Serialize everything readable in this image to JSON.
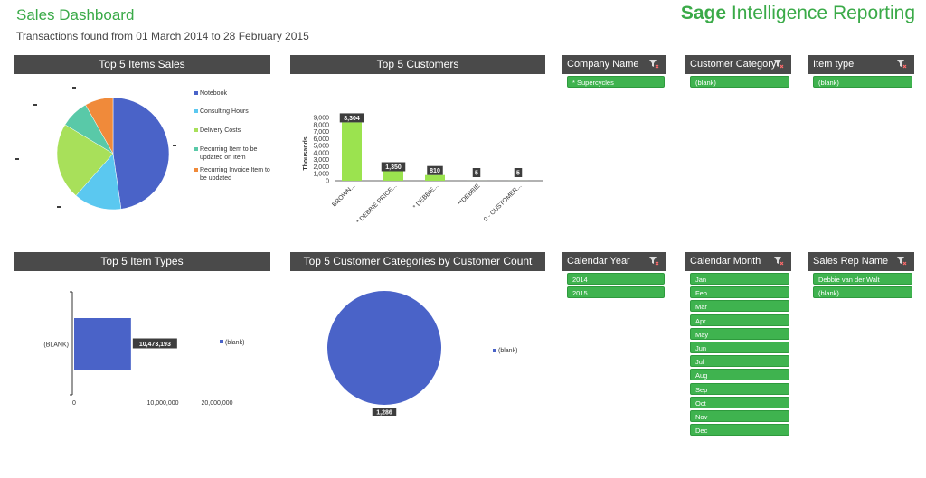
{
  "header": {
    "title": "Sales Dashboard",
    "subtitle": "Transactions found from 01 March 2014 to 28 February 2015",
    "brand_bold": "Sage",
    "brand_rest": " Intelligence Reporting"
  },
  "panels": {
    "items_sales": "Top 5 Items Sales",
    "customers": "Top 5 Customers",
    "item_types": "Top 5 Item Types",
    "customer_categories": "Top 5 Customer Categories by Customer Count"
  },
  "slicers": {
    "company_name": {
      "title": "Company Name",
      "items": [
        "* Supercycles"
      ]
    },
    "customer_category": {
      "title": "Customer Category",
      "items": [
        "(blank)"
      ]
    },
    "item_type": {
      "title": "Item type",
      "items": [
        "(blank)"
      ]
    },
    "calendar_year": {
      "title": "Calendar Year",
      "items": [
        "2014",
        "2015"
      ]
    },
    "calendar_month": {
      "title": "Calendar Month",
      "items": [
        "Jan",
        "Feb",
        "Mar",
        "Apr",
        "May",
        "Jun",
        "Jul",
        "Aug",
        "Sep",
        "Oct",
        "Nov",
        "Dec"
      ]
    },
    "sales_rep": {
      "title": "Sales Rep Name",
      "items": [
        "Debbie van der Walt",
        "(blank)"
      ]
    }
  },
  "colors": {
    "accent": "#3aaa48",
    "header": "#4a4a4a",
    "bar": "#9be34f",
    "blue": "#4a63c8"
  },
  "chart_data": [
    {
      "type": "pie",
      "title": "Top 5 Items Sales",
      "labels": [
        "Notebook",
        "Consulting Hours",
        "Delivery Costs",
        "Recurring Item to be updated on Item",
        "Recurring Invoice Item to be updated"
      ],
      "values": [
        4732000,
        1370250,
        2198000,
        810000,
        810000
      ],
      "value_labels": [
        "4,732,000",
        "1,370,250",
        "2,198,000",
        "810,000",
        "810,000"
      ],
      "colors": [
        "#4a63c8",
        "#5bc8f0",
        "#a8e05a",
        "#59c9a8",
        "#f08a3a"
      ]
    },
    {
      "type": "bar",
      "title": "Top 5 Customers",
      "categories": [
        "BROWN...",
        "* DEBBIE PRICE...",
        "* DEBBIE...",
        "**DEBBIE",
        "0 - CUSTOMER..."
      ],
      "values": [
        8304,
        1350,
        810,
        5,
        5
      ],
      "value_labels": [
        "8,304",
        "1,350",
        "810",
        "5",
        "5"
      ],
      "ylabel": "Thousands",
      "yticks": [
        "9,000",
        "8,000",
        "7,000",
        "6,000",
        "5,000",
        "4,000",
        "3,000",
        "2,000",
        "1,000",
        "0"
      ],
      "ylim": [
        0,
        9000
      ]
    },
    {
      "type": "bar",
      "orientation": "horizontal",
      "title": "Top 5 Item Types",
      "categories": [
        "(BLANK)"
      ],
      "values": [
        10473193
      ],
      "value_labels": [
        "10,473,193"
      ],
      "legend": [
        "(blank)"
      ],
      "xticks": [
        "0",
        "10,000,000",
        "20,000,000"
      ],
      "xlim": [
        0,
        20000000
      ]
    },
    {
      "type": "pie",
      "title": "Top 5 Customer Categories by Customer Count",
      "labels": [
        "(blank)"
      ],
      "values": [
        1286
      ],
      "value_labels": [
        "1,286"
      ],
      "legend": [
        "(blank)"
      ]
    }
  ]
}
